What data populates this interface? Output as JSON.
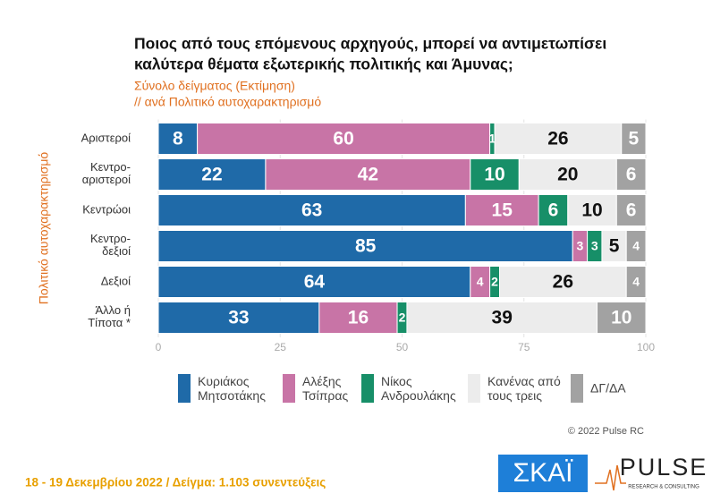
{
  "chart_data": {
    "type": "stacked-bar-horizontal",
    "title": [
      "Ποιος από τους επόμενους αρχηγούς, μπορεί να αντιμετωπίσει",
      "καλύτερα θέματα εξωτερικής πολιτικής και Άμυνας;"
    ],
    "subtitle": [
      "Σύνολο δείγματος  (Εκτίμηση)",
      " // ανά Πολιτικό αυτοχαρακτηρισμό"
    ],
    "y_label": "Πολιτικό αυτοχαρακτηρισμό",
    "categories": [
      "Αριστεροί",
      "Κεντρο-\nαριστεροί",
      "Κεντρώοι",
      "Κεντρο-\nδεξιοί",
      "Δεξιοί",
      "Άλλο ή\nΤίποτα *"
    ],
    "series": [
      {
        "name": "Κυριάκος\nΜητσοτάκης",
        "color": "#1f6aa8",
        "values": [
          8,
          22,
          63,
          85,
          64,
          33
        ]
      },
      {
        "name": "Αλέξης\nΤσίπρας",
        "color": "#c874a6",
        "values": [
          60,
          42,
          15,
          3,
          4,
          16
        ]
      },
      {
        "name": "Νίκος\nΑνδρουλάκης",
        "color": "#178f68",
        "values": [
          1,
          10,
          6,
          3,
          2,
          2
        ]
      },
      {
        "name": "Κανένας από\nτους τρεις",
        "color": "#ececec",
        "values": [
          26,
          20,
          10,
          5,
          26,
          39
        ]
      },
      {
        "name": "ΔΓ/ΔΑ",
        "color": "#a2a2a2",
        "values": [
          5,
          6,
          6,
          4,
          4,
          10
        ]
      }
    ],
    "xlim": [
      0,
      100
    ],
    "xticks": [
      0,
      25,
      50,
      75,
      100
    ],
    "grid": true,
    "watermark": "PULSE",
    "copyright": "© 2022 Pulse RC",
    "footer": "18 - 19  Δεκεμβρίου  2022  /  Δείγμα:  1.103 συνεντεύξεις",
    "logos": {
      "skai": "ΣΚΑΪ",
      "pulse": "PULSE",
      "pulse_sub": "RESEARCH & CONSULTING"
    }
  }
}
